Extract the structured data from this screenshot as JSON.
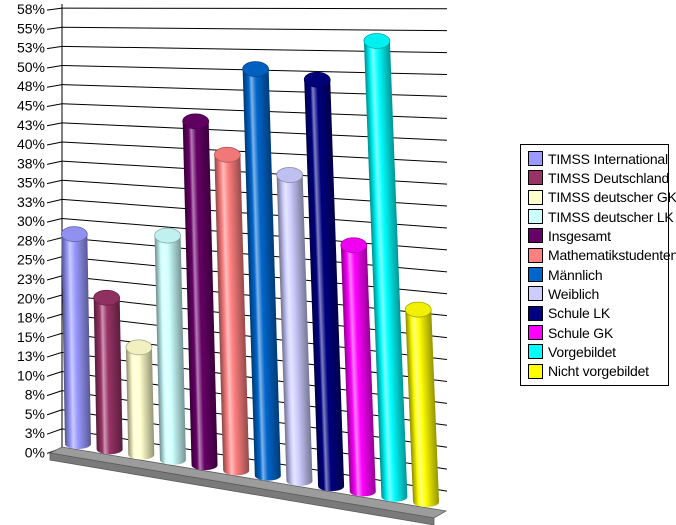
{
  "chart_data": {
    "type": "bar",
    "subtype": "3d-cylinder",
    "title": "",
    "xlabel": "",
    "ylabel": "",
    "categories": [
      "TIMSS International",
      "TIMSS Deutschland",
      "TIMSS deutscher GK",
      "TIMSS deutscher LK",
      "Insgesamt",
      "Mathematikstudenten",
      "Männlich",
      "Weiblich",
      "Schule LK",
      "Schule GK",
      "Vorgebildet",
      "Nicht vorgebildet"
    ],
    "values": [
      28,
      20,
      14,
      29,
      44,
      40,
      51,
      38,
      50,
      30,
      55,
      23
    ],
    "unit": "%",
    "colors": [
      "#9999FF",
      "#993366",
      "#FFFFCC",
      "#CCFFFF",
      "#660066",
      "#FF8080",
      "#0066CC",
      "#CCCCFF",
      "#000080",
      "#FF00FF",
      "#00FFFF",
      "#FFFF00"
    ],
    "ylim": [
      0,
      57.5
    ],
    "ytick_interval": 2.5,
    "ytick_labels": [
      "0%",
      "3%",
      "5%",
      "8%",
      "10%",
      "13%",
      "15%",
      "18%",
      "20%",
      "23%",
      "25%",
      "28%",
      "30%",
      "33%",
      "35%",
      "38%",
      "40%",
      "43%",
      "45%",
      "48%",
      "50%",
      "53%",
      "55%",
      "58%"
    ],
    "grid": true,
    "legend_position": "right",
    "background_color": "#FFFFFF",
    "floor_top_color": "#9C9C9C",
    "floor_front_color": "#7A7A7A",
    "axis_color": "#000000"
  }
}
